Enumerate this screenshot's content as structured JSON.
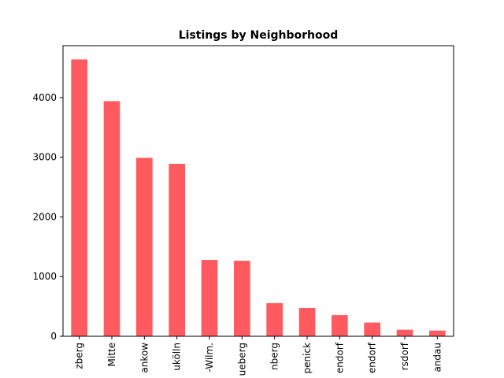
{
  "chart_data": {
    "type": "bar",
    "title": "Listings by Neighborhood",
    "xlabel": "",
    "ylabel": "",
    "categories": [
      "zberg",
      "Mitte",
      "ankow",
      "ukölln",
      "-Wilm.",
      "ueberg",
      "nberg",
      "penick",
      "endorf",
      "endorf",
      "rsdorf",
      "andau"
    ],
    "values": [
      4640,
      3940,
      2990,
      2890,
      1280,
      1265,
      555,
      475,
      355,
      230,
      110,
      95
    ],
    "ylim": [
      0,
      4870
    ],
    "yticks": [
      0,
      1000,
      2000,
      3000,
      4000
    ],
    "ytick_labels": [
      "0",
      "1000",
      "2000",
      "3000",
      "4000"
    ],
    "bar_color": "#ff5a5f",
    "grid": false,
    "legend": "none"
  }
}
